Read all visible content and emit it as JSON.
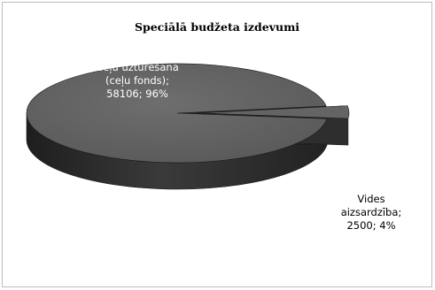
{
  "chart_data": {
    "type": "pie",
    "title": "Speciālā budžeta izdevumi",
    "style": "3d-exploded",
    "slices": [
      {
        "label_lines": [
          "Ceļu uzturēšana",
          "(ceļu fonds);",
          "58106; 96%"
        ],
        "value": 58106,
        "percent": 96
      },
      {
        "label_lines": [
          "Vides",
          "aizsardzība;",
          "2500; 4%"
        ],
        "value": 2500,
        "percent": 4
      }
    ],
    "colors": {
      "top": "#646464",
      "side": "#2e2e2e",
      "edge": "#1a1a1a"
    }
  }
}
